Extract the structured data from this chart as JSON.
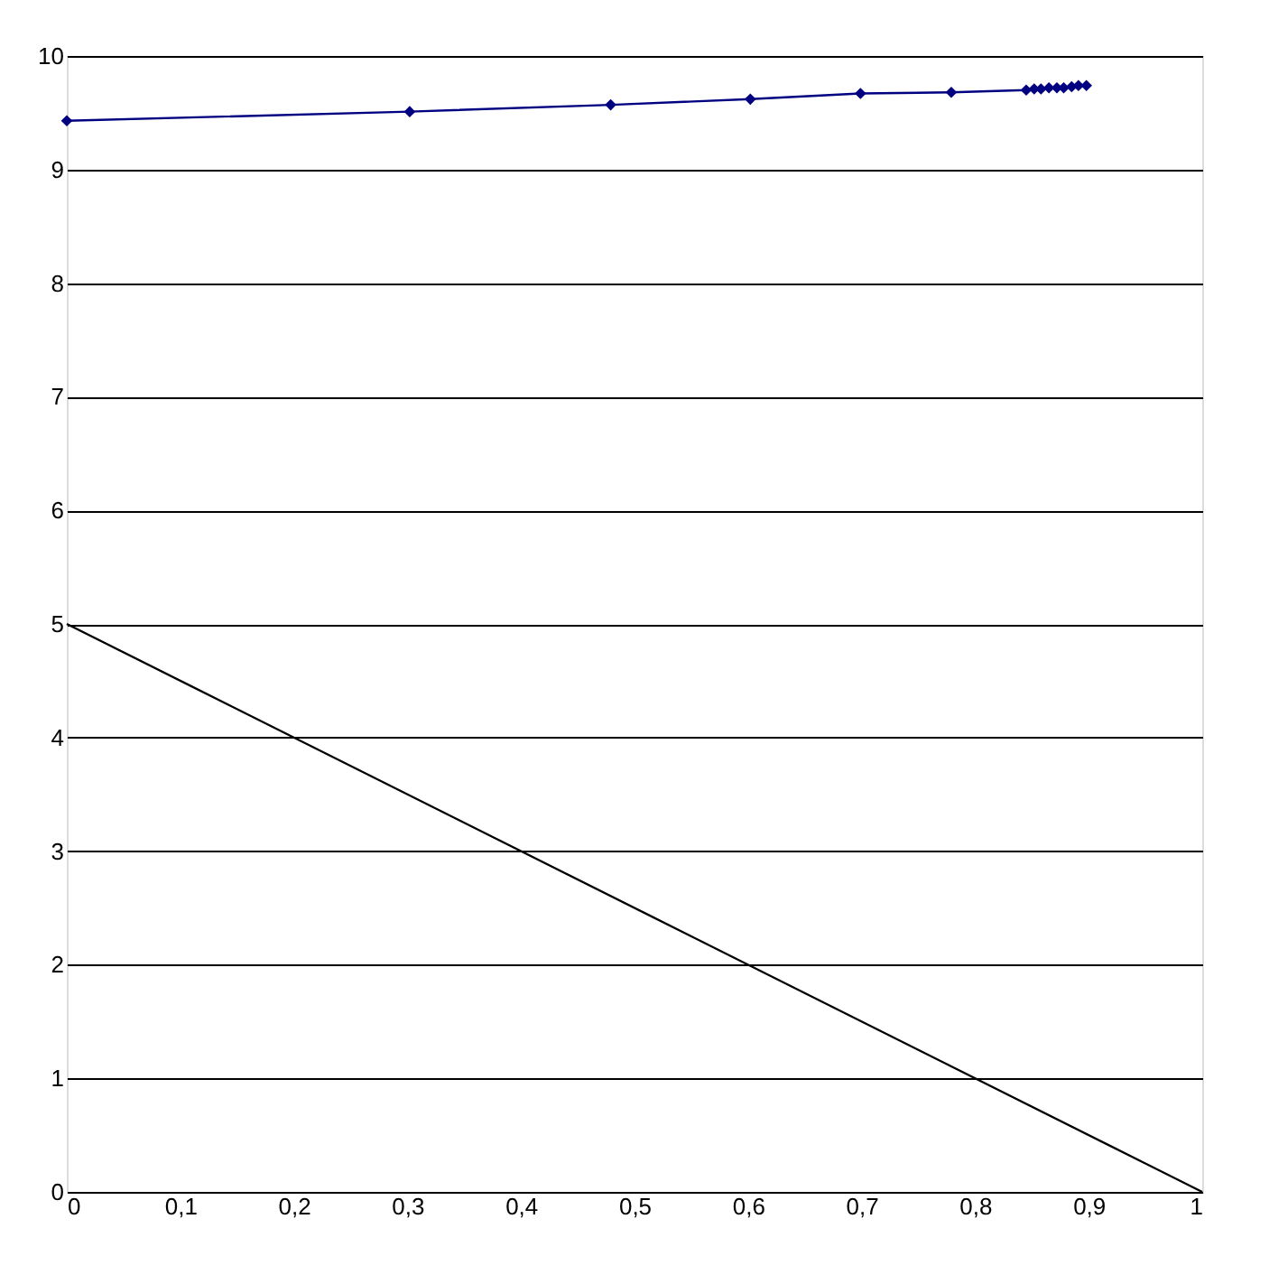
{
  "chart_data": {
    "type": "line",
    "xlim": [
      0,
      1
    ],
    "ylim": [
      0,
      10
    ],
    "xticks": [
      0,
      {
        "value": 0.1,
        "label": "0,1"
      },
      {
        "value": 0.2,
        "label": "0,2"
      },
      {
        "value": 0.3,
        "label": "0,3"
      },
      {
        "value": 0.4,
        "label": "0,4"
      },
      {
        "value": 0.5,
        "label": "0,5"
      },
      {
        "value": 0.6,
        "label": "0,6"
      },
      {
        "value": 0.7,
        "label": "0,7"
      },
      {
        "value": 0.8,
        "label": "0,8"
      },
      {
        "value": 0.9,
        "label": "0,9"
      },
      1
    ],
    "yticks": [
      0,
      1,
      2,
      3,
      4,
      5,
      6,
      7,
      8,
      9,
      10
    ],
    "grid": "y",
    "series": [
      {
        "color": "#000080",
        "marker": "diamond",
        "x": [
          0,
          0.302,
          0.479,
          0.602,
          0.699,
          0.779,
          0.845,
          0.852,
          0.858,
          0.865,
          0.872,
          0.878,
          0.885,
          0.891,
          0.898
        ],
        "values": [
          9.43,
          9.51,
          9.57,
          9.62,
          9.67,
          9.68,
          9.7,
          9.71,
          9.71,
          9.72,
          9.72,
          9.72,
          9.73,
          9.74,
          9.74
        ]
      },
      {
        "color": "#000000",
        "marker": "none",
        "x": [
          0,
          1
        ],
        "values": [
          5,
          0
        ]
      }
    ]
  }
}
